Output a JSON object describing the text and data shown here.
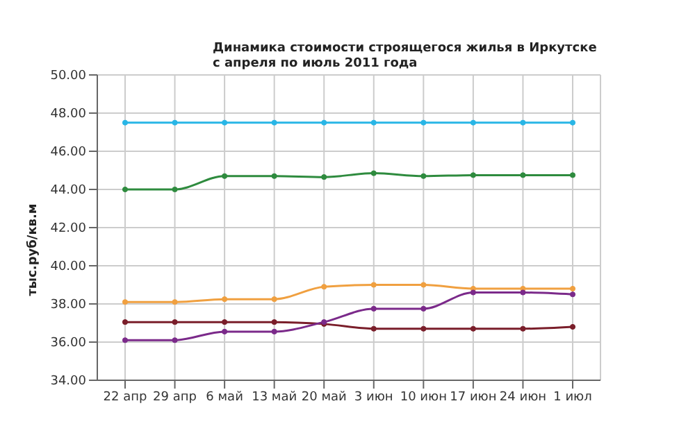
{
  "chart_data": {
    "type": "line",
    "title": "Динамика стоимости строящегося жилья в Иркутске\nс апреля по июль 2011 года",
    "ylabel": "тыс.руб/кв.м",
    "categories": [
      "22 апр",
      "29 апр",
      "6 май",
      "13 май",
      "20 май",
      "3 июн",
      "10 июн",
      "17 июн",
      "24 июн",
      "1 июл"
    ],
    "series": [
      {
        "color": "#29b6e6",
        "values": [
          47.5,
          47.5,
          47.5,
          47.5,
          47.5,
          47.5,
          47.5,
          47.5,
          47.5,
          47.5
        ]
      },
      {
        "color": "#2e8b3e",
        "values": [
          44.0,
          44.0,
          44.7,
          44.7,
          44.65,
          44.85,
          44.7,
          44.75,
          44.75,
          44.75
        ]
      },
      {
        "color": "#f0a040",
        "values": [
          38.1,
          38.1,
          38.25,
          38.25,
          38.9,
          39.0,
          39.0,
          38.8,
          38.8,
          38.8
        ]
      },
      {
        "color": "#7a1e2a",
        "values": [
          37.05,
          37.05,
          37.05,
          37.05,
          36.95,
          36.7,
          36.7,
          36.7,
          36.7,
          36.8
        ]
      },
      {
        "color": "#7b2a8a",
        "values": [
          36.1,
          36.1,
          36.55,
          36.55,
          37.05,
          37.75,
          37.75,
          38.6,
          38.6,
          38.5
        ]
      }
    ],
    "ylim": [
      34,
      50
    ],
    "yticks": [
      {
        "value": 34,
        "label": "34.00"
      },
      {
        "value": 36,
        "label": "36.00"
      },
      {
        "value": 38,
        "label": "38.00"
      },
      {
        "value": 40,
        "label": "40.00"
      },
      {
        "value": 42,
        "label": "42.00"
      },
      {
        "value": 44,
        "label": "44.00"
      },
      {
        "value": 46,
        "label": "46.00"
      },
      {
        "value": 48,
        "label": "48.00"
      },
      {
        "value": 50,
        "label": "50.00"
      }
    ],
    "grid": true,
    "marker": "circle",
    "legend": false
  }
}
